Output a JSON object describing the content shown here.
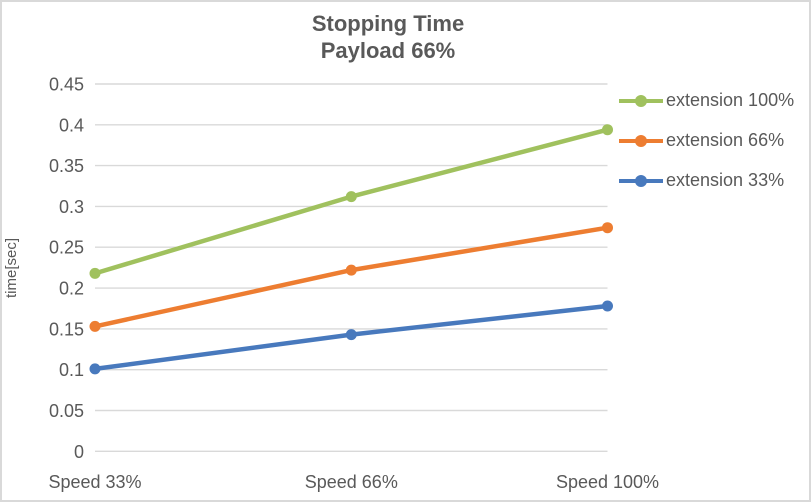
{
  "chart_data": {
    "type": "line",
    "title": "Stopping Time",
    "subtitle": "Payload 66%",
    "ylabel": "time[sec]",
    "categories": [
      "Speed 33%",
      "Speed 66%",
      "Speed 100%"
    ],
    "series": [
      {
        "name": "extension 100%",
        "color": "#a0c15e",
        "values": [
          0.218,
          0.312,
          0.394
        ]
      },
      {
        "name": "extension 66%",
        "color": "#ed7d31",
        "values": [
          0.153,
          0.222,
          0.274
        ]
      },
      {
        "name": "extension 33%",
        "color": "#4879bd",
        "values": [
          0.101,
          0.143,
          0.178
        ]
      }
    ],
    "ylim": [
      0,
      0.45
    ],
    "ytick_step": 0.05,
    "yticks": [
      "0.45",
      "0.4",
      "0.35",
      "0.3",
      "0.25",
      "0.2",
      "0.15",
      "0.1",
      "0.05",
      "0"
    ],
    "grid": true,
    "legend_position": "right"
  },
  "styles": {
    "text_color": "#595959",
    "gridline_color": "#d9d9d9",
    "border_color": "#d9d9d9",
    "background": "#ffffff"
  }
}
